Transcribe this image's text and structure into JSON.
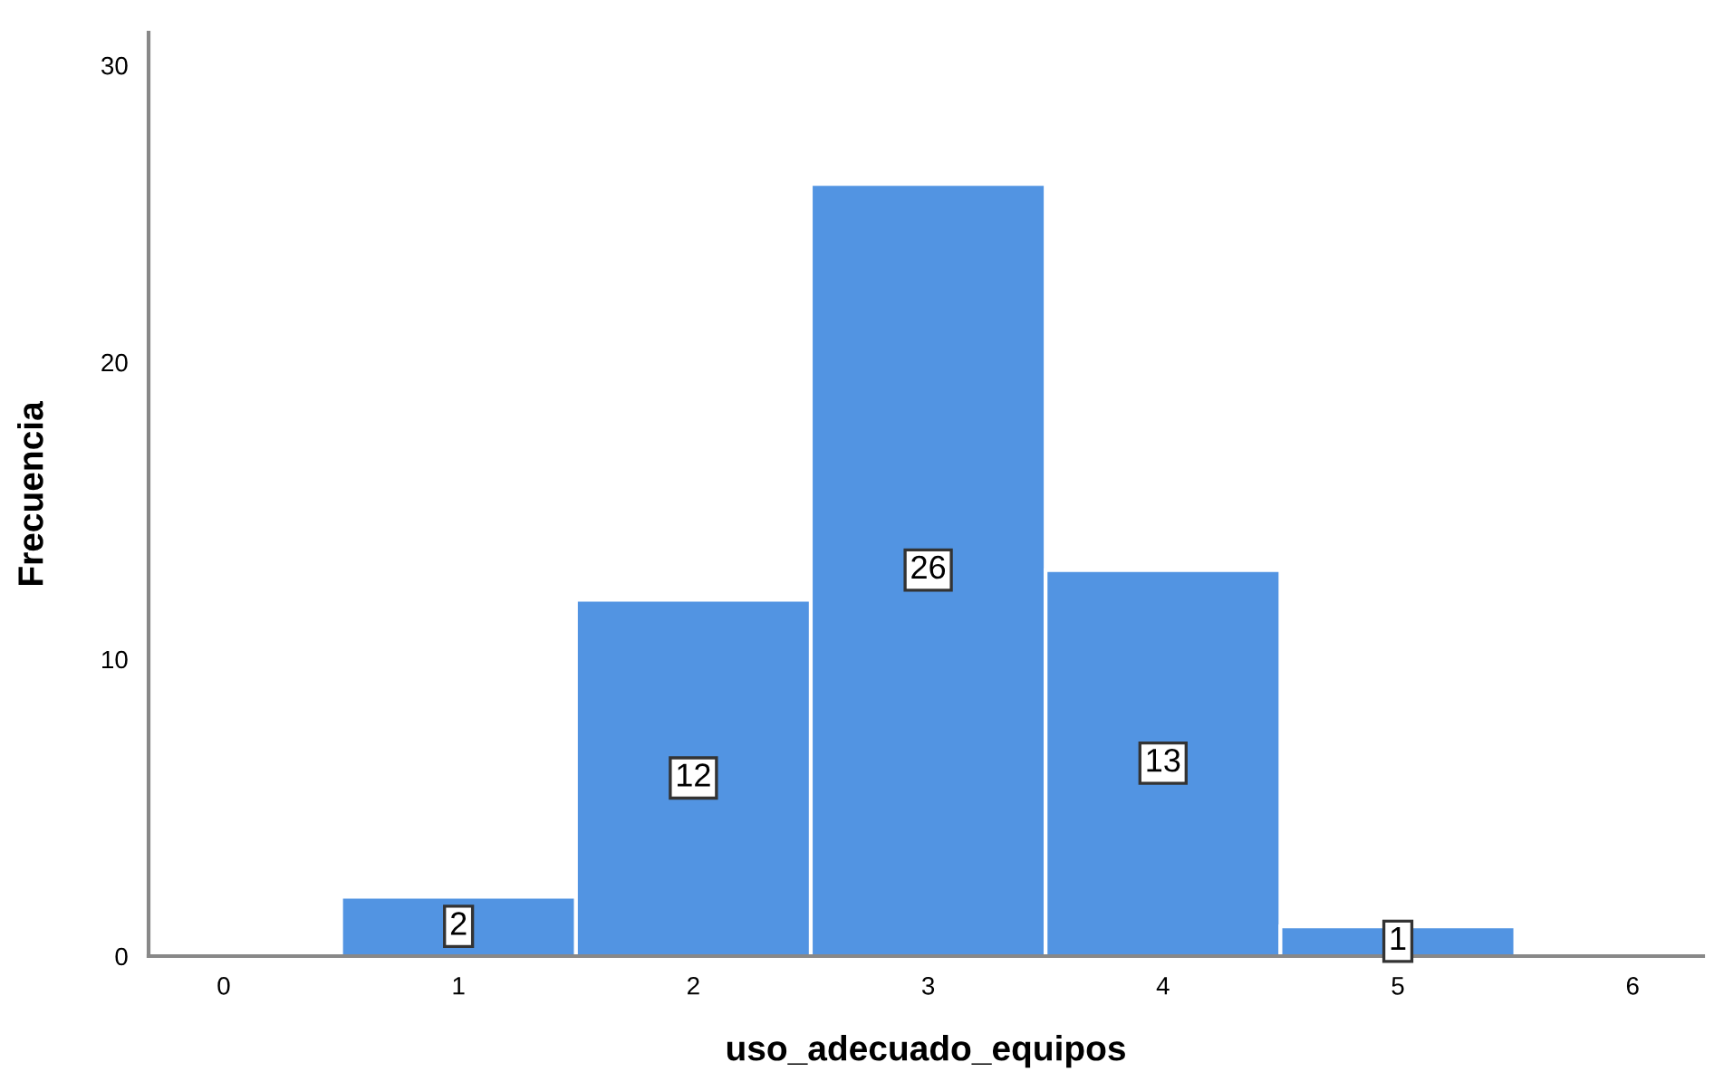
{
  "chart_data": {
    "type": "histogram",
    "xlabel": "uso_adecuado_equipos",
    "ylabel": "Frecuencia",
    "bins": [
      0.5,
      1.5,
      2.5,
      3.5,
      4.5,
      5.5
    ],
    "values": [
      2,
      12,
      26,
      13,
      1
    ],
    "color": "#5294e2",
    "xlim": [
      -0.32,
      6.3
    ],
    "xticks": [
      0,
      1,
      2,
      3,
      4,
      5,
      6
    ],
    "ylim": [
      0,
      31.1
    ],
    "yticks": [
      0,
      10,
      20,
      30
    ],
    "data_labels": true,
    "grid": false,
    "legend": false
  }
}
